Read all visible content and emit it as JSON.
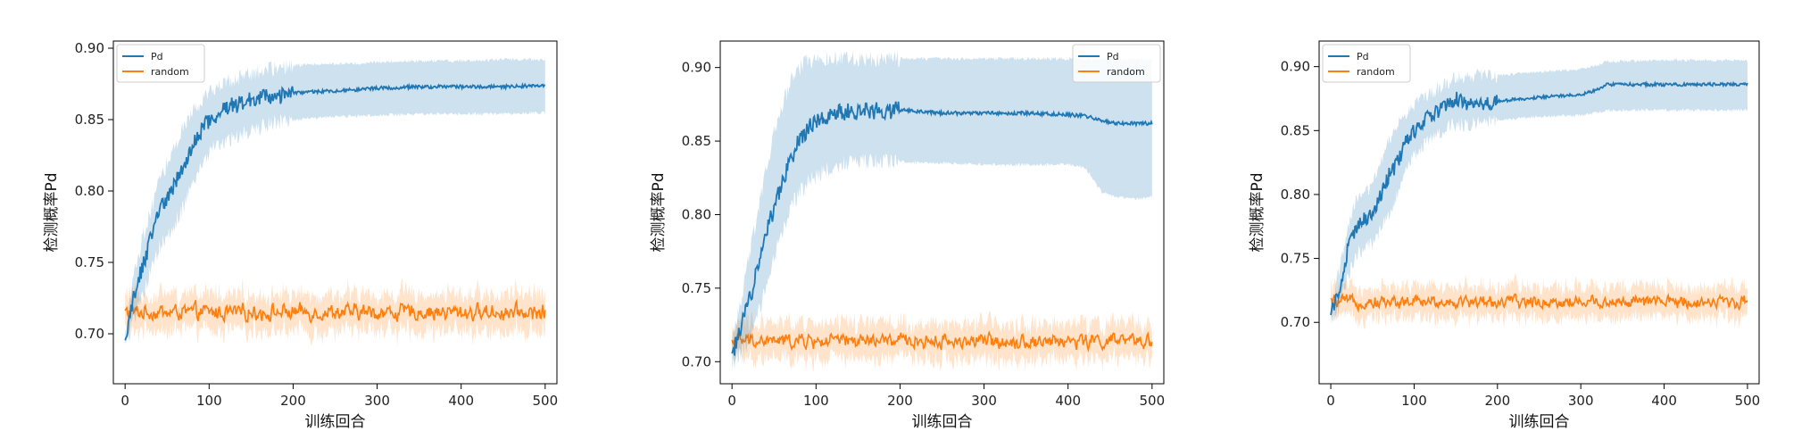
{
  "chart_data": [
    {
      "type": "line",
      "xlabel": "训练回合",
      "ylabel": "检测概率Pd",
      "xlim": [
        -14,
        514
      ],
      "ylim": [
        0.665,
        0.905
      ],
      "xticks": [
        0,
        100,
        200,
        300,
        400,
        500
      ],
      "xtick_labels": [
        "0",
        "100",
        "200",
        "300",
        "400",
        "500"
      ],
      "yticks": [
        0.7,
        0.75,
        0.8,
        0.85,
        0.9
      ],
      "ytick_labels": [
        "0.70",
        "0.75",
        "0.80",
        "0.85",
        "0.90"
      ],
      "legend": {
        "placement": "top-left",
        "entries": [
          "Pd",
          "random"
        ]
      },
      "grid": false,
      "series": [
        {
          "name": "Pd",
          "color": "#1f77b4",
          "x": [
            0,
            10,
            20,
            30,
            40,
            50,
            60,
            70,
            80,
            90,
            100,
            120,
            140,
            160,
            180,
            200,
            250,
            300,
            350,
            400,
            450,
            500
          ],
          "y": [
            0.695,
            0.725,
            0.745,
            0.765,
            0.785,
            0.795,
            0.805,
            0.818,
            0.832,
            0.842,
            0.85,
            0.858,
            0.862,
            0.866,
            0.866,
            0.869,
            0.87,
            0.872,
            0.873,
            0.873,
            0.873,
            0.874
          ],
          "band_lower": [
            0.69,
            0.71,
            0.725,
            0.745,
            0.76,
            0.77,
            0.778,
            0.79,
            0.805,
            0.818,
            0.828,
            0.836,
            0.84,
            0.845,
            0.848,
            0.85,
            0.852,
            0.853,
            0.854,
            0.854,
            0.854,
            0.855
          ],
          "band_upper": [
            0.7,
            0.74,
            0.765,
            0.785,
            0.805,
            0.82,
            0.832,
            0.845,
            0.855,
            0.862,
            0.868,
            0.876,
            0.88,
            0.884,
            0.886,
            0.888,
            0.889,
            0.89,
            0.891,
            0.891,
            0.892,
            0.892
          ]
        },
        {
          "name": "random",
          "color": "#ff7f0e",
          "mean": 0.715,
          "noise": 0.008,
          "band_halfwidth": 0.013,
          "x_range": [
            0,
            500
          ]
        }
      ]
    },
    {
      "type": "line",
      "xlabel": "训练回合",
      "ylabel": "检测概率Pd",
      "xlim": [
        -14,
        514
      ],
      "ylim": [
        0.685,
        0.918
      ],
      "xticks": [
        0,
        100,
        200,
        300,
        400,
        500
      ],
      "xtick_labels": [
        "0",
        "100",
        "200",
        "300",
        "400",
        "500"
      ],
      "yticks": [
        0.7,
        0.75,
        0.8,
        0.85,
        0.9
      ],
      "ytick_labels": [
        "0.70",
        "0.75",
        "0.80",
        "0.85",
        "0.90"
      ],
      "legend": {
        "placement": "top-right",
        "entries": [
          "Pd",
          "random"
        ]
      },
      "grid": false,
      "series": [
        {
          "name": "Pd",
          "color": "#1f77b4",
          "x": [
            0,
            10,
            20,
            30,
            40,
            50,
            60,
            70,
            80,
            90,
            100,
            110,
            120,
            130,
            150,
            200,
            250,
            300,
            350,
            400,
            420,
            440,
            460,
            480,
            500
          ],
          "y": [
            0.705,
            0.722,
            0.74,
            0.762,
            0.785,
            0.805,
            0.822,
            0.838,
            0.85,
            0.858,
            0.864,
            0.867,
            0.868,
            0.87,
            0.87,
            0.871,
            0.869,
            0.869,
            0.869,
            0.868,
            0.867,
            0.864,
            0.862,
            0.862,
            0.862
          ],
          "band_lower": [
            0.698,
            0.705,
            0.715,
            0.73,
            0.75,
            0.77,
            0.79,
            0.805,
            0.815,
            0.822,
            0.826,
            0.83,
            0.832,
            0.834,
            0.836,
            0.836,
            0.835,
            0.834,
            0.834,
            0.834,
            0.832,
            0.815,
            0.812,
            0.811,
            0.812
          ],
          "band_upper": [
            0.712,
            0.74,
            0.77,
            0.8,
            0.83,
            0.855,
            0.875,
            0.89,
            0.9,
            0.904,
            0.906,
            0.906,
            0.906,
            0.906,
            0.906,
            0.906,
            0.906,
            0.906,
            0.906,
            0.906,
            0.906,
            0.906,
            0.906,
            0.906,
            0.906
          ]
        },
        {
          "name": "random",
          "color": "#ff7f0e",
          "mean": 0.714,
          "noise": 0.007,
          "band_halfwidth": 0.012,
          "x_range": [
            0,
            500
          ]
        }
      ]
    },
    {
      "type": "line",
      "xlabel": "训练回合",
      "ylabel": "检测概率Pd",
      "xlim": [
        -14,
        514
      ],
      "ylim": [
        0.652,
        0.92
      ],
      "xticks": [
        0,
        100,
        200,
        300,
        400,
        500
      ],
      "xtick_labels": [
        "0",
        "100",
        "200",
        "300",
        "400",
        "500"
      ],
      "yticks": [
        0.7,
        0.75,
        0.8,
        0.85,
        0.9
      ],
      "ytick_labels": [
        "0.70",
        "0.75",
        "0.80",
        "0.85",
        "0.90"
      ],
      "legend": {
        "placement": "top-left",
        "entries": [
          "Pd",
          "random"
        ]
      },
      "grid": false,
      "series": [
        {
          "name": "Pd",
          "color": "#1f77b4",
          "x": [
            0,
            10,
            20,
            30,
            40,
            50,
            60,
            70,
            80,
            90,
            100,
            120,
            140,
            150,
            160,
            180,
            200,
            250,
            300,
            320,
            330,
            340,
            400,
            450,
            500
          ],
          "y": [
            0.705,
            0.725,
            0.755,
            0.775,
            0.78,
            0.785,
            0.8,
            0.815,
            0.825,
            0.84,
            0.85,
            0.862,
            0.87,
            0.875,
            0.872,
            0.87,
            0.873,
            0.876,
            0.878,
            0.882,
            0.886,
            0.886,
            0.886,
            0.886,
            0.886
          ],
          "band_lower": [
            0.7,
            0.712,
            0.735,
            0.752,
            0.758,
            0.762,
            0.772,
            0.785,
            0.8,
            0.818,
            0.83,
            0.845,
            0.852,
            0.855,
            0.855,
            0.856,
            0.858,
            0.861,
            0.862,
            0.864,
            0.866,
            0.866,
            0.866,
            0.866,
            0.866
          ],
          "band_upper": [
            0.71,
            0.74,
            0.772,
            0.795,
            0.8,
            0.808,
            0.825,
            0.842,
            0.855,
            0.864,
            0.87,
            0.88,
            0.888,
            0.892,
            0.892,
            0.893,
            0.893,
            0.896,
            0.898,
            0.901,
            0.904,
            0.904,
            0.905,
            0.905,
            0.905
          ]
        },
        {
          "name": "random",
          "color": "#ff7f0e",
          "mean": 0.716,
          "noise": 0.007,
          "band_halfwidth": 0.012,
          "x_range": [
            0,
            500
          ]
        }
      ]
    }
  ]
}
